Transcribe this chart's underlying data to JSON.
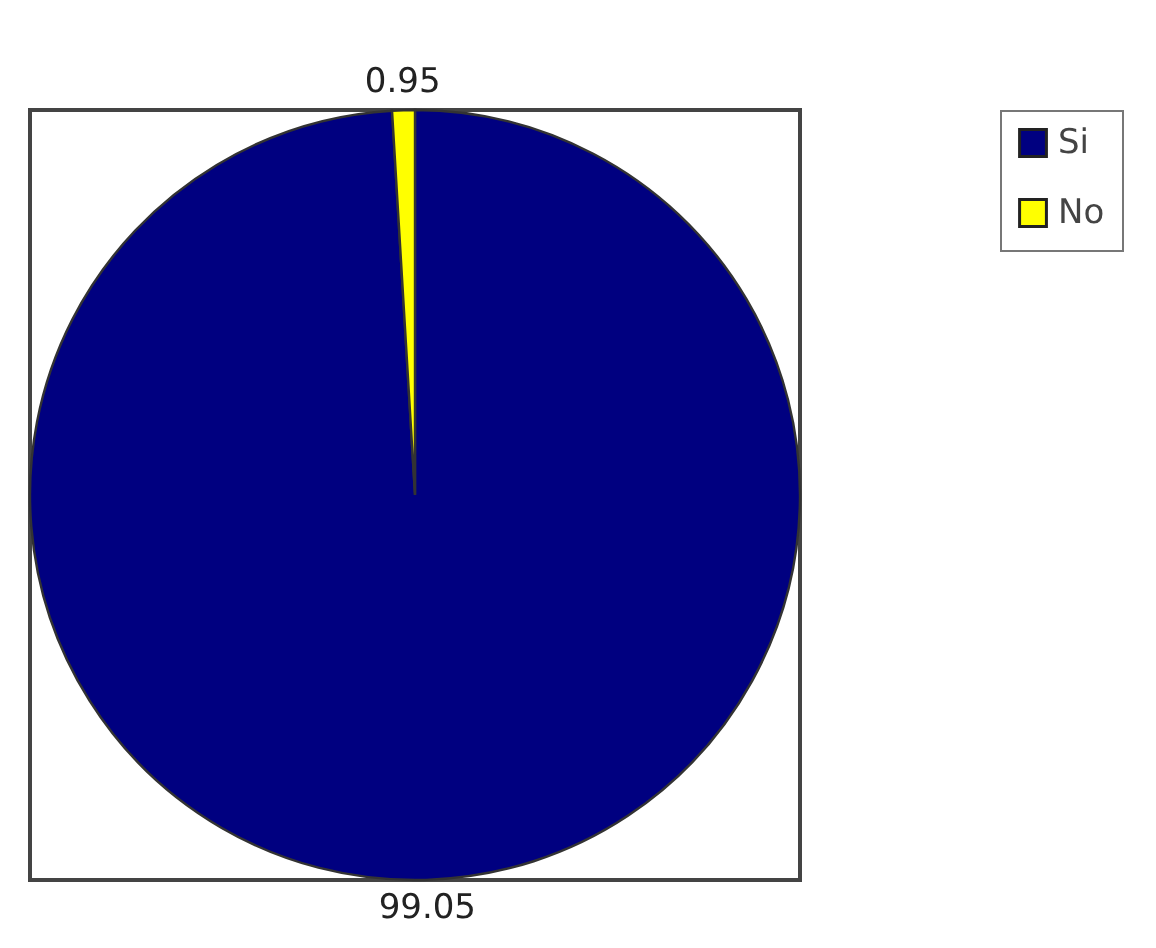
{
  "chart_data": {
    "type": "pie",
    "categories": [
      "Si",
      "No"
    ],
    "values": [
      99.05,
      0.95
    ],
    "colors": [
      "#000080",
      "#ffff00"
    ],
    "data_labels": true,
    "legend": "right"
  }
}
